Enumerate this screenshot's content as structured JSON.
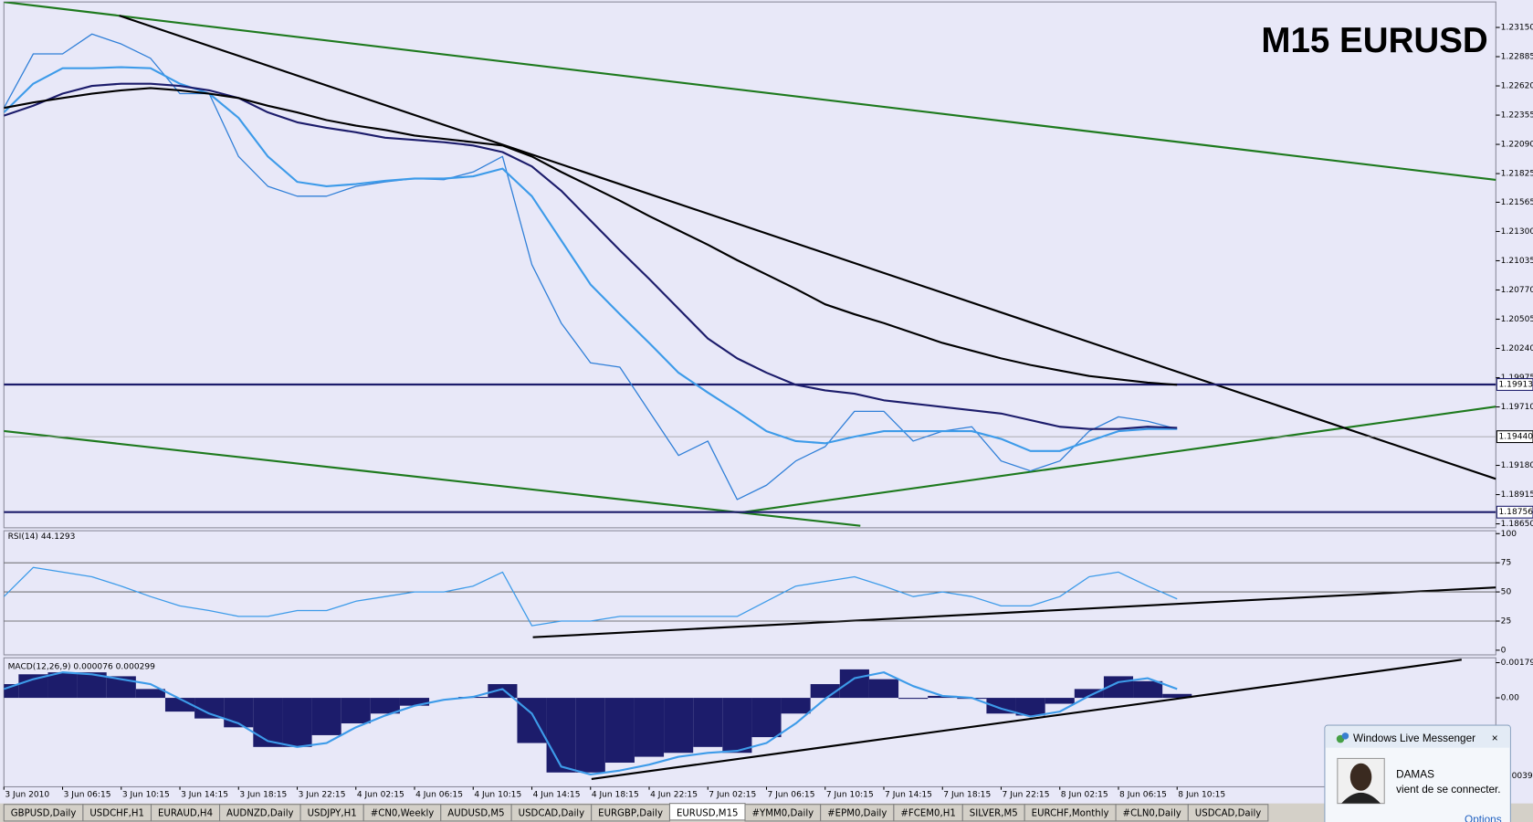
{
  "chart_data": [
    {
      "type": "line",
      "title": "M15 EURUSD",
      "categories": [
        "3 Jun 2010",
        null,
        "3 Jun 06:15",
        null,
        "3 Jun 10:15",
        null,
        "3 Jun 14:15",
        null,
        "3 Jun 18:15",
        null,
        "3 Jun 22:15",
        null,
        "4 Jun 02:15",
        null,
        "4 Jun 06:15",
        null,
        "4 Jun 10:15",
        null,
        "4 Jun 14:15",
        null,
        "4 Jun 18:15",
        null,
        "4 Jun 22:15",
        null,
        "7 Jun 02:15",
        null,
        "7 Jun 06:15",
        null,
        "7 Jun 10:15",
        null,
        "7 Jun 14:15",
        null,
        "7 Jun 18:15",
        null,
        "7 Jun 22:15",
        null,
        "8 Jun 02:15",
        null,
        "8 Jun 06:15",
        null,
        "8 Jun 10:15"
      ],
      "series": [
        {
          "color": "#2f7fd8",
          "values": [
            1.2242,
            1.2291,
            1.2291,
            1.2309,
            1.23,
            1.2287,
            1.2255,
            1.2255,
            1.2198,
            1.2171,
            1.2162,
            1.2162,
            1.2171,
            1.2175,
            1.2178,
            1.2177,
            1.2184,
            1.2198,
            1.21,
            1.2047,
            1.2011,
            1.2007,
            1.1967,
            1.1927,
            1.194,
            1.1887,
            1.19,
            1.1922,
            1.1935,
            1.1967,
            1.1967,
            1.194,
            1.1949,
            1.1953,
            1.1922,
            1.1913,
            1.1922,
            1.1949,
            1.1962,
            1.1958,
            1.1951
          ]
        },
        {
          "color": "#3d9be9",
          "values": [
            1.2238,
            1.2264,
            1.2278,
            1.2278,
            1.2279,
            1.2278,
            1.2264,
            1.2255,
            1.2233,
            1.2198,
            1.2175,
            1.2171,
            1.2173,
            1.2176,
            1.2178,
            1.2178,
            1.218,
            1.2187,
            1.2162,
            1.2122,
            1.2082,
            1.2055,
            1.2029,
            1.2002,
            1.1984,
            1.1967,
            1.1949,
            1.194,
            1.1938,
            1.1944,
            1.1949,
            1.1949,
            1.1949,
            1.1949,
            1.1942,
            1.1931,
            1.1931,
            1.194,
            1.1949,
            1.1951,
            1.1951
          ]
        },
        {
          "color": "#1c1c6b",
          "values": [
            1.2235,
            1.2244,
            1.2255,
            1.2262,
            1.2264,
            1.2264,
            1.2262,
            1.2258,
            1.2251,
            1.2238,
            1.2229,
            1.2224,
            1.222,
            1.2215,
            1.2213,
            1.2211,
            1.2208,
            1.2202,
            1.2189,
            1.2167,
            1.214,
            1.2113,
            1.2087,
            1.206,
            1.2033,
            1.2015,
            1.2002,
            1.1991,
            1.1986,
            1.1983,
            1.1977,
            1.1974,
            1.1971,
            1.1968,
            1.1965,
            1.1959,
            1.1953,
            1.1951,
            1.1951,
            1.1953,
            1.1952
          ]
        },
        {
          "color": "#000000",
          "values": [
            1.2242,
            1.2247,
            1.2251,
            1.2255,
            1.2258,
            1.226,
            1.2258,
            1.2255,
            1.2251,
            1.2244,
            1.2238,
            1.2231,
            1.2226,
            1.2222,
            1.2217,
            1.2214,
            1.2211,
            1.2208,
            1.2198,
            1.2184,
            1.2171,
            1.2158,
            1.2144,
            1.2131,
            1.2118,
            1.2104,
            1.2091,
            1.2078,
            1.2064,
            1.2055,
            1.2047,
            1.2038,
            1.2029,
            1.2022,
            1.2015,
            1.2009,
            1.2004,
            1.1999,
            1.1996,
            1.1993,
            1.1991
          ]
        }
      ],
      "ylim": [
        1.18614,
        1.23381
      ],
      "yticks": [
        {
          "value": 1.2315,
          "label": "1.23150"
        },
        1.22885,
        {
          "value": 1.2262,
          "label": "1.22620"
        },
        1.22355,
        {
          "value": 1.2209,
          "label": "1.22090"
        },
        1.21825,
        1.21565,
        {
          "value": 1.213,
          "label": "1.21300"
        },
        1.21035,
        {
          "value": 1.2077,
          "label": "1.20770"
        },
        1.20505,
        {
          "value": 1.2024,
          "label": "1.20240"
        },
        1.19975,
        {
          "value": 1.1971,
          "label": "1.19710"
        },
        {
          "value": 1.1918,
          "label": "1.19180"
        },
        1.18915,
        {
          "value": 1.1865,
          "label": "1.18650"
        }
      ],
      "bid": {
        "value": 1.1944,
        "label": "1.19440"
      },
      "levels": [
        1.19913,
        1.18756
      ],
      "level_color": "#1c1c6b"
    },
    {
      "type": "line",
      "title": "RSI(14) 44.1293",
      "series": [
        {
          "color": "#3d9be9",
          "values": [
            46,
            71,
            67,
            63,
            55,
            46,
            38,
            34,
            29,
            29,
            34,
            34,
            42,
            46,
            50,
            50,
            55,
            67,
            21,
            25,
            25,
            29,
            29,
            29,
            29,
            29,
            42,
            55,
            59,
            63,
            55,
            46,
            50,
            46,
            38,
            38,
            46,
            63,
            67,
            55,
            44
          ]
        }
      ],
      "ylim": [
        -4,
        102.5
      ],
      "yticks": [
        100,
        75,
        50,
        25,
        0
      ],
      "levels": [
        75,
        50,
        25
      ]
    },
    {
      "type": "bar",
      "title": "MACD(12,26,9) 0.000076 0.000299",
      "series": [
        {
          "color": "#1c1c6b",
          "values": [
            0.0007,
            0.0012,
            0.0013,
            0.0013,
            0.0011,
            0.00045,
            -0.0007,
            -0.00105,
            -0.0015,
            -0.0025,
            -0.0025,
            -0.0019,
            -0.0013,
            -0.0008,
            -0.0004,
            0,
            5e-05,
            0.0007,
            -0.0023,
            -0.0038,
            -0.0038,
            -0.0033,
            -0.003,
            -0.0028,
            -0.0025,
            -0.0028,
            -0.002,
            -0.0008,
            0.0007,
            0.00145,
            0.00095,
            -5e-05,
            0.0001,
            -5e-05,
            -0.0008,
            -0.0009,
            -0.0003,
            0.00045,
            0.0011,
            0.00085,
            0.0002
          ]
        },
        {
          "type": "line",
          "color": "#3d9be9",
          "values": [
            0.00045,
            0.00095,
            0.0013,
            0.0012,
            0.00095,
            0.0007,
            -5e-05,
            -0.0008,
            -0.0013,
            -0.0022,
            -0.0025,
            -0.0023,
            -0.0015,
            -0.0009,
            -0.0004,
            -0.0001,
            5e-05,
            0.00045,
            -0.0008,
            -0.0035,
            -0.0039,
            -0.0037,
            -0.0034,
            -0.003,
            -0.0028,
            -0.0027,
            -0.0023,
            -0.0013,
            -5e-05,
            0.001,
            0.0013,
            0.0006,
            0.0001,
            0,
            -0.00055,
            -0.00095,
            -0.0007,
            0.0001,
            0.0008,
            0.001,
            0.00045
          ]
        }
      ],
      "ylim": [
        -0.00453,
        0.00204
      ],
      "yticks": [
        0.001792,
        {
          "value": 0,
          "label": "0.00"
        },
        -0.00398
      ]
    }
  ],
  "tabs": [
    {
      "label": "GBPUSD,Daily"
    },
    {
      "label": "USDCHF,H1"
    },
    {
      "label": "EURAUD,H4"
    },
    {
      "label": "AUDNZD,Daily"
    },
    {
      "label": "USDJPY,H1"
    },
    {
      "label": "#CN0,Weekly"
    },
    {
      "label": "AUDUSD,M5"
    },
    {
      "label": "USDCAD,Daily"
    },
    {
      "label": "EURGBP,Daily"
    },
    {
      "label": "EURUSD,M15",
      "active": true
    },
    {
      "label": "#YMM0,Daily"
    },
    {
      "label": "#EPM0,Daily"
    },
    {
      "label": "#FCEM0,H1"
    },
    {
      "label": "SILVER,M5"
    },
    {
      "label": "EURCHF,Monthly"
    },
    {
      "label": "#CLN0,Daily"
    },
    {
      "label": "USDCAD,Daily"
    }
  ],
  "notification": {
    "app": "Windows Live Messenger",
    "contact": "DAMAS",
    "message": "vient de se connecter.",
    "link": "Options"
  }
}
